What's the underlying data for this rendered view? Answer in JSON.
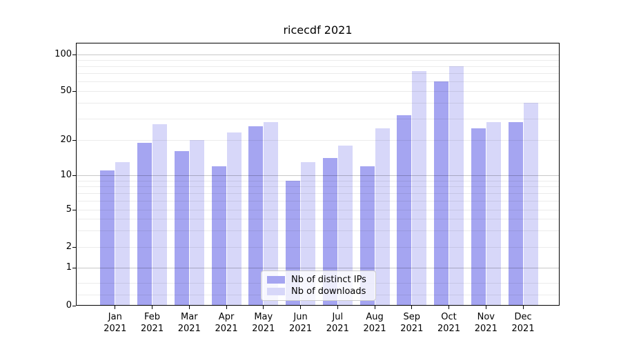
{
  "chart_data": {
    "type": "bar",
    "title": "ricecdf 2021",
    "categories": [
      "Jan",
      "Feb",
      "Mar",
      "Apr",
      "May",
      "Jun",
      "Jul",
      "Aug",
      "Sep",
      "Oct",
      "Nov",
      "Dec"
    ],
    "year_label": "2021",
    "series": [
      {
        "name": "Nb of distinct IPs",
        "color": "#a5a5f1",
        "values": [
          11,
          19,
          16,
          12,
          26,
          9,
          14,
          12,
          32,
          60,
          25,
          28
        ]
      },
      {
        "name": "Nb of downloads",
        "color": "#d7d7f9",
        "values": [
          13,
          27,
          20,
          23,
          28,
          13,
          18,
          25,
          73,
          80,
          28,
          40
        ]
      }
    ],
    "xlabel": "",
    "ylabel": "",
    "yscale": "symlog-like",
    "ylim": [
      0,
      125
    ],
    "grid": true,
    "legend_position": "lower center",
    "yticks": [
      {
        "v": 100,
        "label": "100"
      },
      {
        "v": 50,
        "label": "50"
      },
      {
        "v": 20,
        "label": "20"
      },
      {
        "v": 10,
        "label": "10"
      },
      {
        "v": 5,
        "label": "5"
      },
      {
        "v": 2,
        "label": "2"
      },
      {
        "v": 1,
        "label": "1"
      },
      {
        "v": 0,
        "label": "0"
      }
    ],
    "major_gridlines": [
      1,
      10,
      100
    ],
    "minor_gridlines": [
      0.2,
      0.5,
      2,
      3,
      4,
      5,
      6,
      7,
      8,
      9,
      20,
      30,
      40,
      50,
      60,
      70,
      80,
      90
    ],
    "scale_anchors": [
      [
        0.2,
        16
      ],
      [
        0.5,
        33
      ],
      [
        1,
        55
      ],
      [
        2,
        85
      ],
      [
        5,
        139
      ],
      [
        10,
        189
      ],
      [
        20,
        240
      ],
      [
        50,
        311
      ],
      [
        100,
        364
      ]
    ]
  },
  "colors": {
    "background": "#ffffff",
    "axis": "#000000",
    "grid_minor": "rgba(0,0,0,0.08)",
    "grid_major": "rgba(0,0,0,0.22)",
    "legend_border": "#cccccc"
  }
}
